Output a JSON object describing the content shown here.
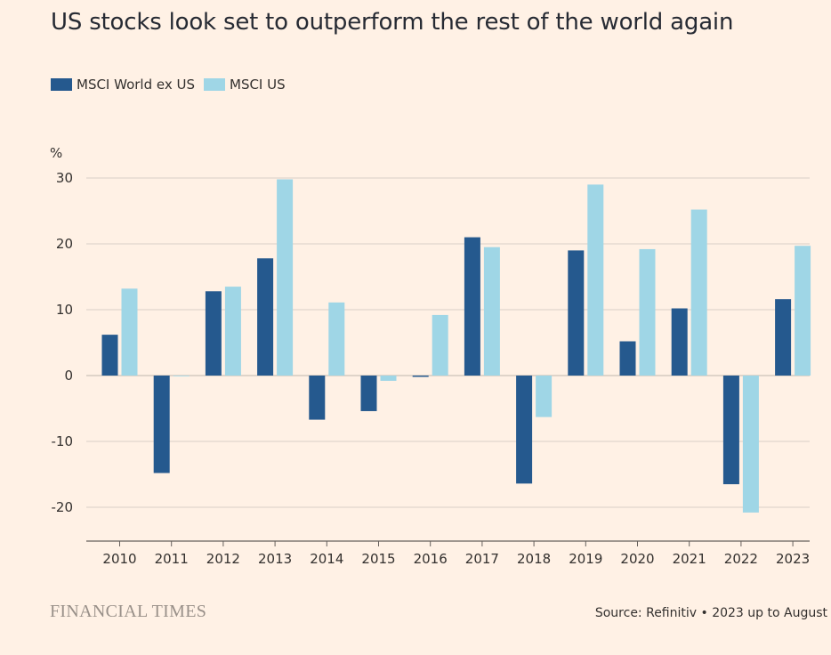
{
  "title": "US stocks look set to outperform the rest of the world again",
  "colors": {
    "background": "#fff1e5",
    "world": "#25598e",
    "us": "#9fd6e6",
    "grid": "#d8cfc6",
    "axis": "#66605c"
  },
  "source": "Source: Refinitiv • 2023 up to August",
  "brand": "FINANCIAL TIMES",
  "chart_data": {
    "type": "bar",
    "title": "US stocks look set to outperform the rest of the world again",
    "ylabel": "%",
    "xlabel": "",
    "ylim": [
      -25,
      30
    ],
    "yticks": [
      30,
      20,
      10,
      0,
      -10,
      -20
    ],
    "ytick_labels": [
      "30",
      "20",
      "10",
      "0",
      "-10",
      "-20"
    ],
    "grid": true,
    "legend_position": "top-left",
    "categories": [
      "2010",
      "2011",
      "2012",
      "2013",
      "2014",
      "2015",
      "2016",
      "2017",
      "2018",
      "2019",
      "2020",
      "2021",
      "2022",
      "2023"
    ],
    "series": [
      {
        "name": "MSCI World ex US",
        "values": [
          6.2,
          -14.8,
          12.8,
          17.8,
          -6.7,
          -5.4,
          -0.2,
          21.0,
          -16.4,
          19.0,
          5.2,
          10.2,
          -16.5,
          11.6
        ]
      },
      {
        "name": "MSCI US",
        "values": [
          13.2,
          0.0,
          13.5,
          29.8,
          11.1,
          -0.8,
          9.2,
          19.5,
          -6.3,
          29.0,
          19.2,
          25.2,
          -20.8,
          19.7
        ]
      }
    ]
  }
}
